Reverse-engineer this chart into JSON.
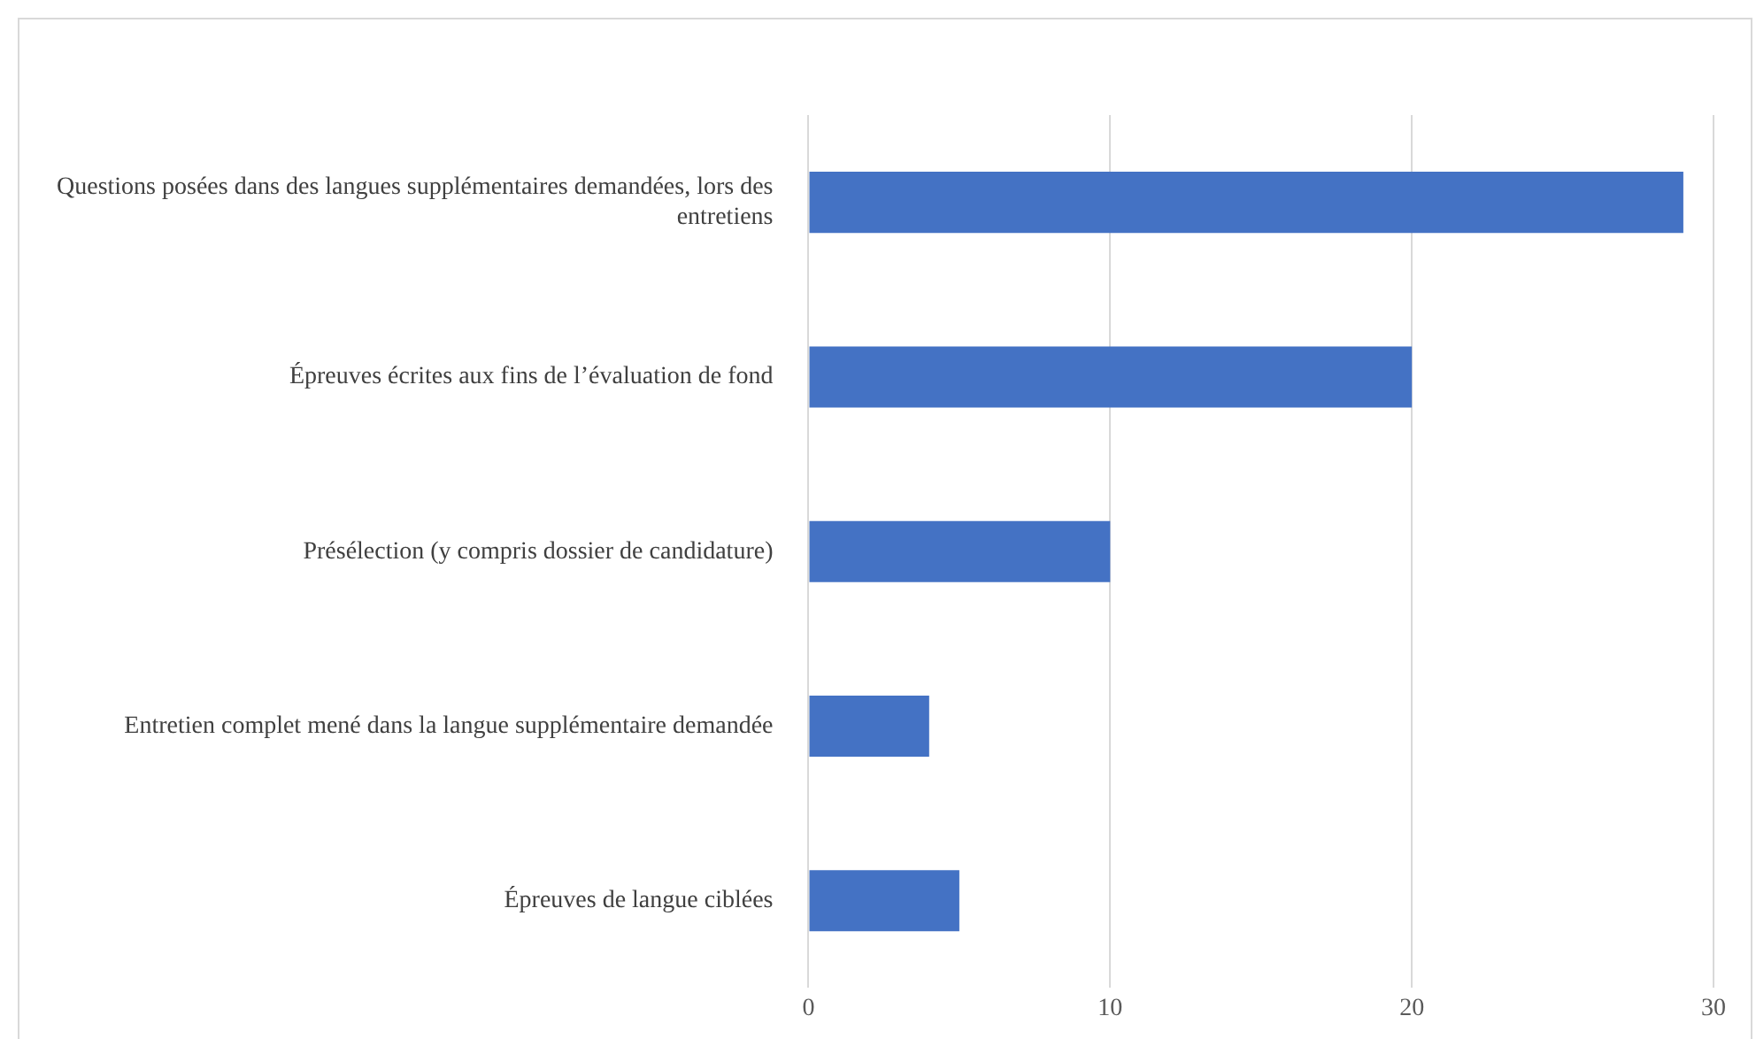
{
  "chart_data": {
    "type": "bar",
    "orientation": "horizontal",
    "categories": [
      "Questions posées dans des langues supplémentaires demandées, lors des entretiens",
      "Épreuves écrites aux fins de l’évaluation de fond",
      "Présélection (y compris dossier de candidature)",
      "Entretien complet mené dans la langue supplémentaire demandée",
      "Épreuves de langue ciblées"
    ],
    "values": [
      29,
      20,
      10,
      4,
      5
    ],
    "color": "#4472c4",
    "xlim": [
      0,
      30
    ],
    "xticks": [
      0,
      10,
      20,
      30
    ],
    "grid": "x",
    "legend": false
  }
}
